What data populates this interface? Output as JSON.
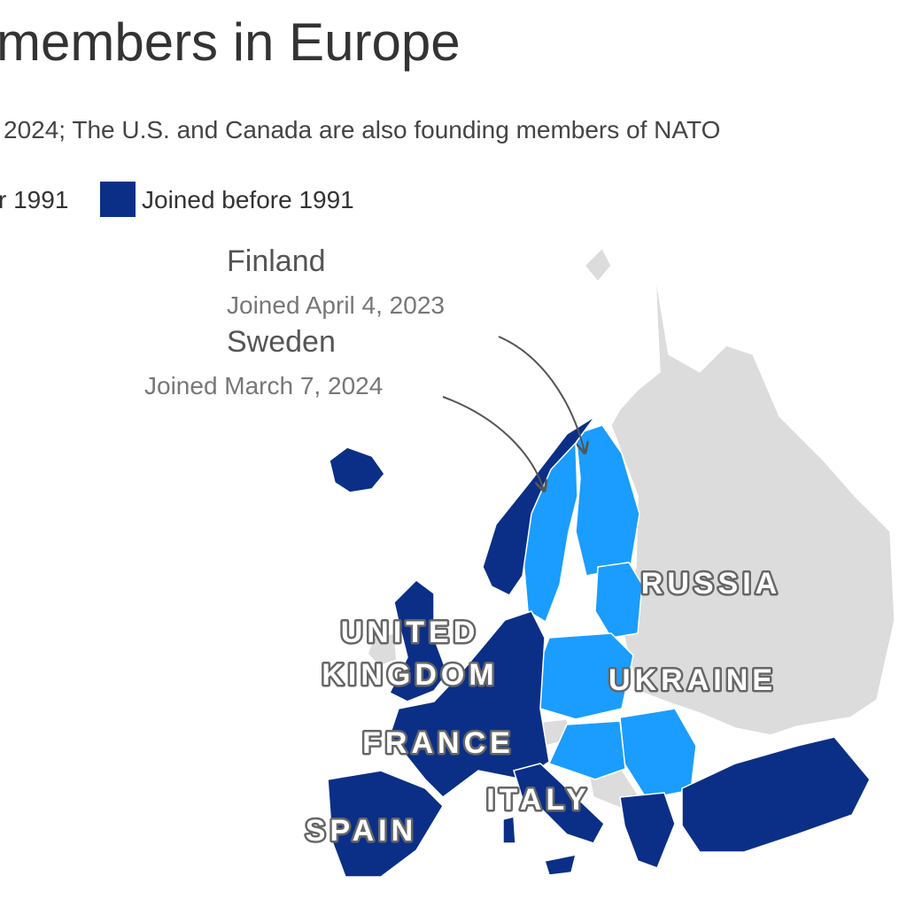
{
  "header": {
    "title": "members in Europe",
    "subtitle": "2024; The U.S. and Canada are also founding members of NATO"
  },
  "legend": {
    "items": [
      {
        "label": "r 1991"
      },
      {
        "label": "Joined before 1991",
        "color": "#0b2f87"
      }
    ]
  },
  "annotations": [
    {
      "name": "Finland",
      "detail": "Joined April 4, 2023"
    },
    {
      "name": "Sweden",
      "detail": "Joined March 7, 2024"
    }
  ],
  "labels": [
    "RUSSIA",
    "UNITED",
    "KINGDOM",
    "UKRAINE",
    "FRANCE",
    "ITALY",
    "SPAIN"
  ]
}
